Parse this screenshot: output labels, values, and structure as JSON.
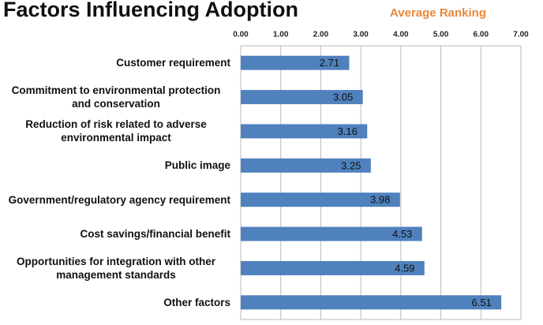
{
  "chart_data": {
    "type": "hbar",
    "title": "Factors Influencing Adoption",
    "xlabel": "Average Ranking",
    "categories": [
      "Customer requirement",
      "Commitment to environmental protection and conservation",
      "Reduction of risk related to adverse environmental impact",
      "Public image",
      "Government/regulatory agency requirement",
      "Cost savings/financial benefit",
      "Opportunities for integration with other management standards",
      "Other factors"
    ],
    "values": [
      2.71,
      3.05,
      3.16,
      3.25,
      3.98,
      4.53,
      4.59,
      6.51
    ],
    "color": "#4f81bd",
    "xlim": [
      0,
      7
    ],
    "xticks": [
      {
        "value": 0,
        "label": "0.00"
      },
      {
        "value": 1,
        "label": "1.00"
      },
      {
        "value": 2,
        "label": "2.00"
      },
      {
        "value": 3,
        "label": "3.00"
      },
      {
        "value": 4,
        "label": "4.00"
      },
      {
        "value": 5,
        "label": "5.00"
      },
      {
        "value": 6,
        "label": "6.00"
      },
      {
        "value": 7,
        "label": "7.00"
      }
    ],
    "grid": true
  }
}
